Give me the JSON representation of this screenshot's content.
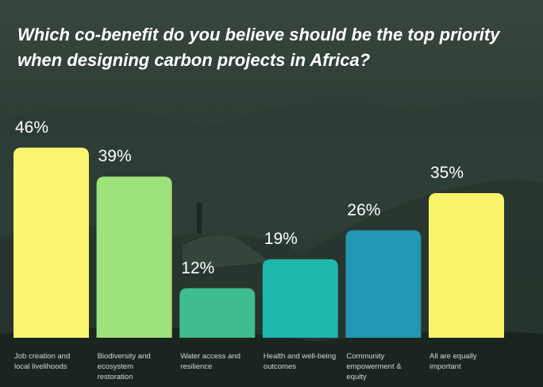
{
  "chart_data": {
    "type": "bar",
    "title": "Which co-benefit do you believe should be the top priority when designing carbon projects in Africa?",
    "categories": [
      "Job creation and local livelihoods",
      "Biodiversity and ecosystem restoration",
      "Water access and resilience",
      "Health and well-being outcomes",
      "Community empowerment & equity",
      "All are equally important"
    ],
    "values": [
      46,
      39,
      12,
      19,
      26,
      35
    ],
    "value_labels": [
      "46%",
      "39%",
      "12%",
      "19%",
      "26%",
      "35%"
    ],
    "colors": [
      "#fbf66f",
      "#9ee27c",
      "#3fbd8c",
      "#1db7ae",
      "#2396b3",
      "#f9f46c"
    ]
  }
}
